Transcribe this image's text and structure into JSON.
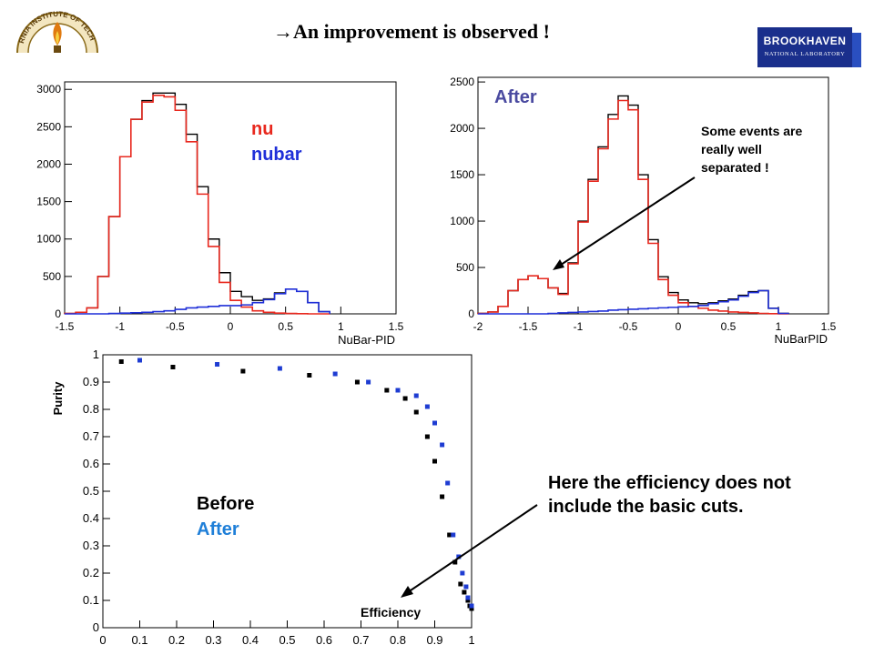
{
  "title": "An improvement is observed !",
  "title_arrow": "→",
  "logos": {
    "left_arc_text": "RNIA INSTITUTE OF TECH",
    "right_name": "BROOKHAVEN",
    "right_sub": "NATIONAL LABORATORY"
  },
  "colors": {
    "nu": "#e8281e",
    "nubar": "#1f2fd8",
    "before": "#000000",
    "after": "#1e3cd2",
    "after_label": "#1f7fd8",
    "after_title": "#4a4aa0",
    "bnl_blue": "#1a2f8c"
  },
  "annotations": {
    "top_right": "Some events are really well separated !",
    "bottom_right": "Here the efficiency does not include the basic cuts."
  },
  "chart_data": [
    {
      "type": "line",
      "xlabel": "NuBar-PID",
      "ylabel": "",
      "xlim": [
        -1.5,
        1.5
      ],
      "ylim": [
        0,
        3100
      ],
      "xticks": [
        "-1.5",
        "-1",
        "-0.5",
        "0",
        "0.5",
        "1",
        "1.5"
      ],
      "yticks": [
        "0",
        "500",
        "1000",
        "1500",
        "2000",
        "2500",
        "3000"
      ],
      "legend": [
        "nu",
        "nubar"
      ],
      "x": [
        -1.45,
        -1.35,
        -1.25,
        -1.15,
        -1.05,
        -0.95,
        -0.85,
        -0.75,
        -0.65,
        -0.55,
        -0.45,
        -0.35,
        -0.25,
        -0.15,
        -0.05,
        0.05,
        0.15,
        0.25,
        0.35,
        0.45,
        0.55,
        0.65,
        0.75,
        0.85
      ],
      "series": [
        {
          "name": "total",
          "values": [
            5,
            20,
            80,
            500,
            1300,
            2100,
            2600,
            2850,
            2950,
            2950,
            2800,
            2400,
            1700,
            1000,
            550,
            300,
            230,
            180,
            200,
            280,
            330,
            300,
            150,
            30
          ]
        },
        {
          "name": "nu",
          "values": [
            5,
            20,
            80,
            500,
            1300,
            2100,
            2600,
            2830,
            2920,
            2900,
            2720,
            2300,
            1600,
            900,
            420,
            180,
            90,
            40,
            20,
            10,
            5,
            2,
            0,
            0
          ]
        },
        {
          "name": "nubar",
          "values": [
            0,
            0,
            0,
            0,
            5,
            10,
            15,
            20,
            30,
            40,
            60,
            80,
            90,
            100,
            110,
            110,
            120,
            150,
            190,
            270,
            330,
            300,
            150,
            30
          ]
        }
      ]
    },
    {
      "type": "line",
      "title": "After",
      "xlabel": "NuBarPID",
      "ylabel": "",
      "xlim": [
        -2,
        1.5
      ],
      "ylim": [
        0,
        2550
      ],
      "xticks": [
        "-2",
        "-1.5",
        "-1",
        "-0.5",
        "0",
        "0.5",
        "1",
        "1.5"
      ],
      "yticks": [
        "0",
        "500",
        "1000",
        "1500",
        "2000",
        "2500"
      ],
      "x": [
        -1.95,
        -1.85,
        -1.75,
        -1.65,
        -1.55,
        -1.45,
        -1.35,
        -1.25,
        -1.15,
        -1.05,
        -0.95,
        -0.85,
        -0.75,
        -0.65,
        -0.55,
        -0.45,
        -0.35,
        -0.25,
        -0.15,
        -0.05,
        0.05,
        0.15,
        0.25,
        0.35,
        0.45,
        0.55,
        0.65,
        0.75,
        0.85,
        0.95,
        1.05
      ],
      "series": [
        {
          "name": "total",
          "values": [
            5,
            20,
            80,
            250,
            370,
            410,
            380,
            280,
            220,
            550,
            1000,
            1450,
            1800,
            2150,
            2350,
            2250,
            1500,
            800,
            400,
            230,
            150,
            120,
            110,
            120,
            140,
            160,
            200,
            240,
            250,
            60,
            5
          ]
        },
        {
          "name": "nu",
          "values": [
            5,
            20,
            80,
            250,
            370,
            410,
            380,
            280,
            210,
            540,
            990,
            1430,
            1780,
            2100,
            2300,
            2200,
            1450,
            760,
            370,
            200,
            120,
            80,
            60,
            40,
            30,
            20,
            15,
            10,
            5,
            2,
            0
          ]
        },
        {
          "name": "nubar",
          "values": [
            0,
            0,
            0,
            0,
            0,
            0,
            0,
            5,
            10,
            15,
            20,
            25,
            30,
            40,
            45,
            50,
            55,
            60,
            65,
            70,
            75,
            80,
            90,
            110,
            130,
            150,
            190,
            230,
            250,
            60,
            5
          ]
        }
      ]
    },
    {
      "type": "scatter",
      "xlabel": "Efficiency",
      "ylabel": "Purity",
      "xlim": [
        0,
        1
      ],
      "ylim": [
        0,
        1
      ],
      "xticks": [
        "0",
        "0.1",
        "0.2",
        "0.3",
        "0.4",
        "0.5",
        "0.6",
        "0.7",
        "0.8",
        "0.9",
        "1"
      ],
      "yticks": [
        "0",
        "0.1",
        "0.2",
        "0.3",
        "0.4",
        "0.5",
        "0.6",
        "0.7",
        "0.8",
        "0.9",
        "1"
      ],
      "legend": [
        "Before",
        "After"
      ],
      "series": [
        {
          "name": "Before",
          "x": [
            0.05,
            0.19,
            0.38,
            0.56,
            0.69,
            0.77,
            0.82,
            0.85,
            0.88,
            0.9,
            0.92,
            0.94,
            0.955,
            0.97,
            0.98,
            0.99,
            0.995,
            1.0
          ],
          "y": [
            0.975,
            0.955,
            0.94,
            0.925,
            0.9,
            0.87,
            0.84,
            0.79,
            0.7,
            0.61,
            0.48,
            0.34,
            0.24,
            0.16,
            0.13,
            0.1,
            0.08,
            0.07
          ]
        },
        {
          "name": "After",
          "x": [
            0.1,
            0.31,
            0.48,
            0.63,
            0.72,
            0.8,
            0.85,
            0.88,
            0.9,
            0.92,
            0.935,
            0.95,
            0.965,
            0.975,
            0.985,
            0.99,
            1.0
          ],
          "y": [
            0.98,
            0.965,
            0.95,
            0.93,
            0.9,
            0.87,
            0.85,
            0.81,
            0.75,
            0.67,
            0.53,
            0.34,
            0.26,
            0.2,
            0.15,
            0.11,
            0.08
          ]
        }
      ]
    }
  ]
}
